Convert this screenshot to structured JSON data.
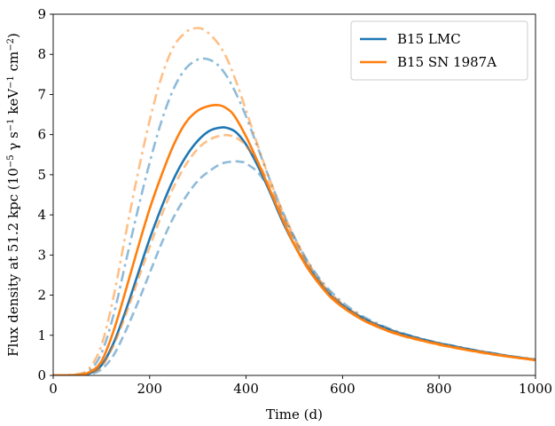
{
  "chart_data": {
    "type": "line",
    "xlabel": "Time (d)",
    "ylabel_parts": {
      "pre": "Flux density at 51.2 kpc (10",
      "exp1": "−5",
      "mid1": " γ s",
      "exp2": "−1",
      "mid2": " keV",
      "exp3": "−1",
      "mid3": " cm",
      "exp4": "−2",
      "post": ")"
    },
    "xlim": [
      0,
      1000
    ],
    "ylim": [
      0,
      9
    ],
    "xticks": [
      0,
      200,
      400,
      600,
      800,
      1000
    ],
    "yticks": [
      0,
      1,
      2,
      3,
      4,
      5,
      6,
      7,
      8,
      9
    ],
    "grid": false,
    "legend_position": "top-right",
    "legend": [
      {
        "label": "B15 LMC",
        "color": "#1f77b4"
      },
      {
        "label": "B15 SN 1987A",
        "color": "#ff7f0e"
      }
    ],
    "series": [
      {
        "group": "B15 LMC",
        "color": "#1f77b4",
        "style": "solid",
        "opacity": 1.0,
        "x": [
          0,
          50,
          75,
          100,
          125,
          150,
          175,
          200,
          225,
          250,
          275,
          300,
          325,
          350,
          365,
          380,
          400,
          425,
          450,
          475,
          500,
          525,
          550,
          575,
          600,
          625,
          650,
          675,
          700,
          725,
          750,
          775,
          800,
          825,
          850,
          875,
          900,
          925,
          950,
          975,
          1000
        ],
        "y": [
          0,
          0.01,
          0.05,
          0.25,
          0.8,
          1.6,
          2.5,
          3.4,
          4.2,
          4.9,
          5.45,
          5.85,
          6.1,
          6.18,
          6.15,
          6.05,
          5.75,
          5.2,
          4.55,
          3.85,
          3.25,
          2.75,
          2.35,
          2.0,
          1.75,
          1.55,
          1.38,
          1.25,
          1.13,
          1.03,
          0.95,
          0.87,
          0.8,
          0.74,
          0.68,
          0.62,
          0.57,
          0.52,
          0.47,
          0.43,
          0.39
        ]
      },
      {
        "group": "B15 LMC",
        "color": "#1f77b4",
        "style": "dashed",
        "opacity": 0.5,
        "x": [
          0,
          50,
          75,
          100,
          125,
          150,
          175,
          200,
          225,
          250,
          275,
          300,
          325,
          350,
          375,
          390,
          400,
          425,
          450,
          475,
          500,
          525,
          550,
          575,
          600,
          625,
          650,
          675,
          700,
          725,
          750,
          775,
          800,
          825,
          850,
          875,
          900,
          925,
          950,
          975,
          1000
        ],
        "y": [
          0,
          0.01,
          0.03,
          0.15,
          0.5,
          1.1,
          1.8,
          2.55,
          3.3,
          3.95,
          4.45,
          4.85,
          5.1,
          5.28,
          5.33,
          5.32,
          5.28,
          5.05,
          4.6,
          4.0,
          3.4,
          2.85,
          2.4,
          2.05,
          1.75,
          1.52,
          1.35,
          1.22,
          1.1,
          1.0,
          0.92,
          0.85,
          0.78,
          0.72,
          0.66,
          0.61,
          0.56,
          0.51,
          0.47,
          0.43,
          0.39
        ]
      },
      {
        "group": "B15 LMC",
        "color": "#1f77b4",
        "style": "dashdot",
        "opacity": 0.5,
        "x": [
          0,
          50,
          75,
          100,
          125,
          150,
          175,
          200,
          225,
          250,
          275,
          300,
          320,
          340,
          360,
          380,
          400,
          425,
          450,
          475,
          500,
          525,
          550,
          575,
          600,
          625,
          650,
          675,
          700,
          725,
          750,
          775,
          800,
          825,
          850,
          875,
          900,
          925,
          950,
          975,
          1000
        ],
        "y": [
          0,
          0.02,
          0.12,
          0.55,
          1.5,
          2.8,
          4.1,
          5.3,
          6.35,
          7.15,
          7.65,
          7.87,
          7.88,
          7.75,
          7.45,
          7.0,
          6.45,
          5.65,
          4.85,
          4.1,
          3.45,
          2.9,
          2.45,
          2.1,
          1.82,
          1.6,
          1.42,
          1.28,
          1.15,
          1.05,
          0.96,
          0.88,
          0.81,
          0.75,
          0.69,
          0.63,
          0.58,
          0.53,
          0.48,
          0.44,
          0.4
        ]
      },
      {
        "group": "B15 SN 1987A",
        "color": "#ff7f0e",
        "style": "solid",
        "opacity": 1.0,
        "x": [
          0,
          50,
          75,
          100,
          125,
          150,
          175,
          200,
          225,
          250,
          275,
          300,
          325,
          345,
          360,
          375,
          400,
          425,
          450,
          475,
          500,
          525,
          550,
          575,
          600,
          625,
          650,
          675,
          700,
          725,
          750,
          775,
          800,
          825,
          850,
          875,
          900,
          925,
          950,
          975,
          1000
        ],
        "y": [
          0,
          0.01,
          0.08,
          0.35,
          1.1,
          2.1,
          3.15,
          4.15,
          5.0,
          5.75,
          6.3,
          6.6,
          6.72,
          6.73,
          6.65,
          6.48,
          5.95,
          5.3,
          4.6,
          3.9,
          3.25,
          2.72,
          2.3,
          1.95,
          1.7,
          1.5,
          1.33,
          1.2,
          1.08,
          0.99,
          0.91,
          0.84,
          0.77,
          0.71,
          0.65,
          0.6,
          0.55,
          0.5,
          0.46,
          0.42,
          0.38
        ]
      },
      {
        "group": "B15 SN 1987A",
        "color": "#ff7f0e",
        "style": "dashed",
        "opacity": 0.5,
        "x": [
          0,
          50,
          75,
          100,
          125,
          150,
          175,
          200,
          225,
          250,
          275,
          300,
          325,
          350,
          370,
          385,
          400,
          425,
          450,
          475,
          500,
          525,
          550,
          575,
          600,
          625,
          650,
          675,
          700,
          725,
          750,
          775,
          800,
          825,
          850,
          875,
          900,
          925,
          950,
          975,
          1000
        ],
        "y": [
          0,
          0.01,
          0.05,
          0.22,
          0.75,
          1.5,
          2.35,
          3.2,
          4.0,
          4.7,
          5.25,
          5.65,
          5.88,
          5.98,
          5.97,
          5.88,
          5.72,
          5.3,
          4.7,
          4.0,
          3.35,
          2.8,
          2.35,
          2.0,
          1.72,
          1.5,
          1.33,
          1.2,
          1.08,
          0.98,
          0.9,
          0.83,
          0.76,
          0.7,
          0.65,
          0.59,
          0.54,
          0.5,
          0.46,
          0.42,
          0.38
        ]
      },
      {
        "group": "B15 SN 1987A",
        "color": "#ff7f0e",
        "style": "dashdot",
        "opacity": 0.5,
        "x": [
          0,
          50,
          75,
          100,
          125,
          150,
          175,
          200,
          225,
          250,
          275,
          290,
          305,
          320,
          340,
          360,
          380,
          400,
          425,
          450,
          475,
          500,
          525,
          550,
          575,
          600,
          625,
          650,
          675,
          700,
          725,
          750,
          775,
          800,
          825,
          850,
          875,
          900,
          925,
          950,
          975,
          1000
        ],
        "y": [
          0,
          0.03,
          0.18,
          0.75,
          1.95,
          3.5,
          5.0,
          6.35,
          7.45,
          8.2,
          8.55,
          8.64,
          8.65,
          8.55,
          8.3,
          7.9,
          7.3,
          6.6,
          5.7,
          4.85,
          4.1,
          3.45,
          2.88,
          2.42,
          2.05,
          1.78,
          1.56,
          1.38,
          1.24,
          1.12,
          1.02,
          0.93,
          0.86,
          0.79,
          0.73,
          0.67,
          0.62,
          0.57,
          0.52,
          0.47,
          0.43,
          0.39
        ]
      }
    ]
  }
}
